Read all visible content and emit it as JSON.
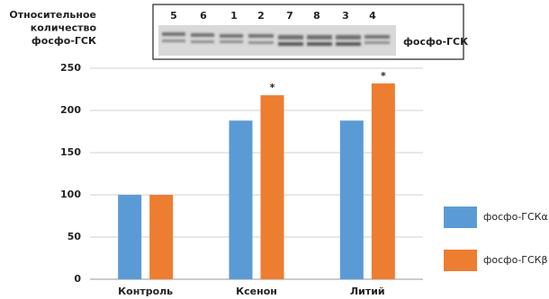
{
  "chart_data": {
    "type": "bar",
    "y_label_lines": [
      "Относительное",
      "количество",
      "фосфо-ГСК"
    ],
    "categories": [
      "Контроль",
      "Ксенон",
      "Литий"
    ],
    "series": [
      {
        "name": "фосфо-ГСКα",
        "color": "#5b9bd5",
        "values": [
          100,
          188,
          188
        ]
      },
      {
        "name": "фосфо-ГСКβ",
        "color": "#ed7d31",
        "values": [
          100,
          218,
          232
        ]
      }
    ],
    "annotations": [
      {
        "text": "*",
        "category": "Ксенон",
        "series": "фосфо-ГСКβ"
      },
      {
        "text": "*",
        "category": "Литий",
        "series": "фосфо-ГСКβ"
      }
    ],
    "ylim": [
      0,
      250
    ],
    "yticks": [
      0,
      50,
      100,
      150,
      200,
      250
    ],
    "grid": true,
    "legend": "right"
  },
  "blot": {
    "lanes": [
      "5",
      "6",
      "1",
      "2",
      "7",
      "8",
      "3",
      "4"
    ],
    "label": "фосфо-ГСК"
  }
}
